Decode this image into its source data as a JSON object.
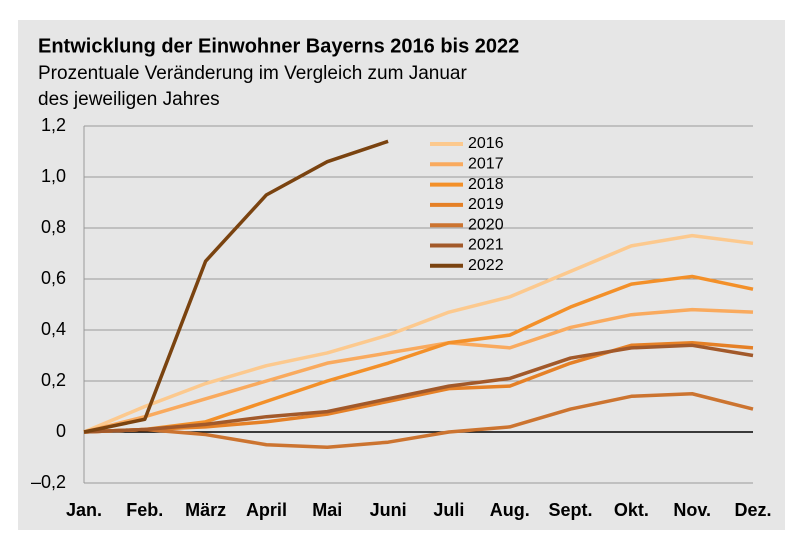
{
  "chart_data": {
    "type": "line",
    "title": "Entwicklung der Einwohner Bayerns 2016 bis 2022",
    "subtitle": [
      "Prozentuale Veränderung im Vergleich zum Januar",
      "des jeweiligen Jahres"
    ],
    "categories": [
      "Jan.",
      "Feb.",
      "März",
      "April",
      "Mai",
      "Juni",
      "Juli",
      "Aug.",
      "Sept.",
      "Okt.",
      "Nov.",
      "Dez."
    ],
    "series": [
      {
        "name": "2016",
        "color": "#fcc98e",
        "values": [
          0,
          0.1,
          0.19,
          0.26,
          0.31,
          0.38,
          0.47,
          0.53,
          0.63,
          0.73,
          0.77,
          0.74
        ]
      },
      {
        "name": "2017",
        "color": "#f9aa5e",
        "values": [
          0,
          0.06,
          0.13,
          0.2,
          0.27,
          0.31,
          0.35,
          0.33,
          0.41,
          0.46,
          0.48,
          0.47
        ]
      },
      {
        "name": "2018",
        "color": "#f39029",
        "values": [
          0,
          0.01,
          0.04,
          0.12,
          0.2,
          0.27,
          0.35,
          0.38,
          0.49,
          0.58,
          0.61,
          0.56
        ]
      },
      {
        "name": "2019",
        "color": "#e58026",
        "values": [
          0,
          0.01,
          0.02,
          0.04,
          0.07,
          0.12,
          0.17,
          0.18,
          0.27,
          0.34,
          0.35,
          0.33
        ]
      },
      {
        "name": "2020",
        "color": "#cc7430",
        "values": [
          0,
          0.01,
          -0.01,
          -0.05,
          -0.06,
          -0.04,
          0.0,
          0.02,
          0.09,
          0.14,
          0.15,
          0.09
        ]
      },
      {
        "name": "2021",
        "color": "#a2592a",
        "values": [
          0,
          0.01,
          0.03,
          0.06,
          0.08,
          0.13,
          0.18,
          0.21,
          0.29,
          0.33,
          0.34,
          0.3
        ]
      },
      {
        "name": "2022",
        "color": "#7a4310",
        "values": [
          0,
          0.05,
          0.67,
          0.93,
          1.06,
          1.14,
          null,
          null,
          null,
          null,
          null,
          null
        ]
      }
    ],
    "ylim": [
      -0.2,
      1.2
    ],
    "yticks": [
      {
        "value": -0.2,
        "label": "–0,2"
      },
      0,
      {
        "value": 0.2,
        "label": "0,2"
      },
      {
        "value": 0.4,
        "label": "0,4"
      },
      {
        "value": 0.6,
        "label": "0,6"
      },
      {
        "value": 0.8,
        "label": "0,8"
      },
      {
        "value": 1.0,
        "label": "1,0"
      },
      {
        "value": 1.2,
        "label": "1,2"
      }
    ],
    "grid": true
  }
}
